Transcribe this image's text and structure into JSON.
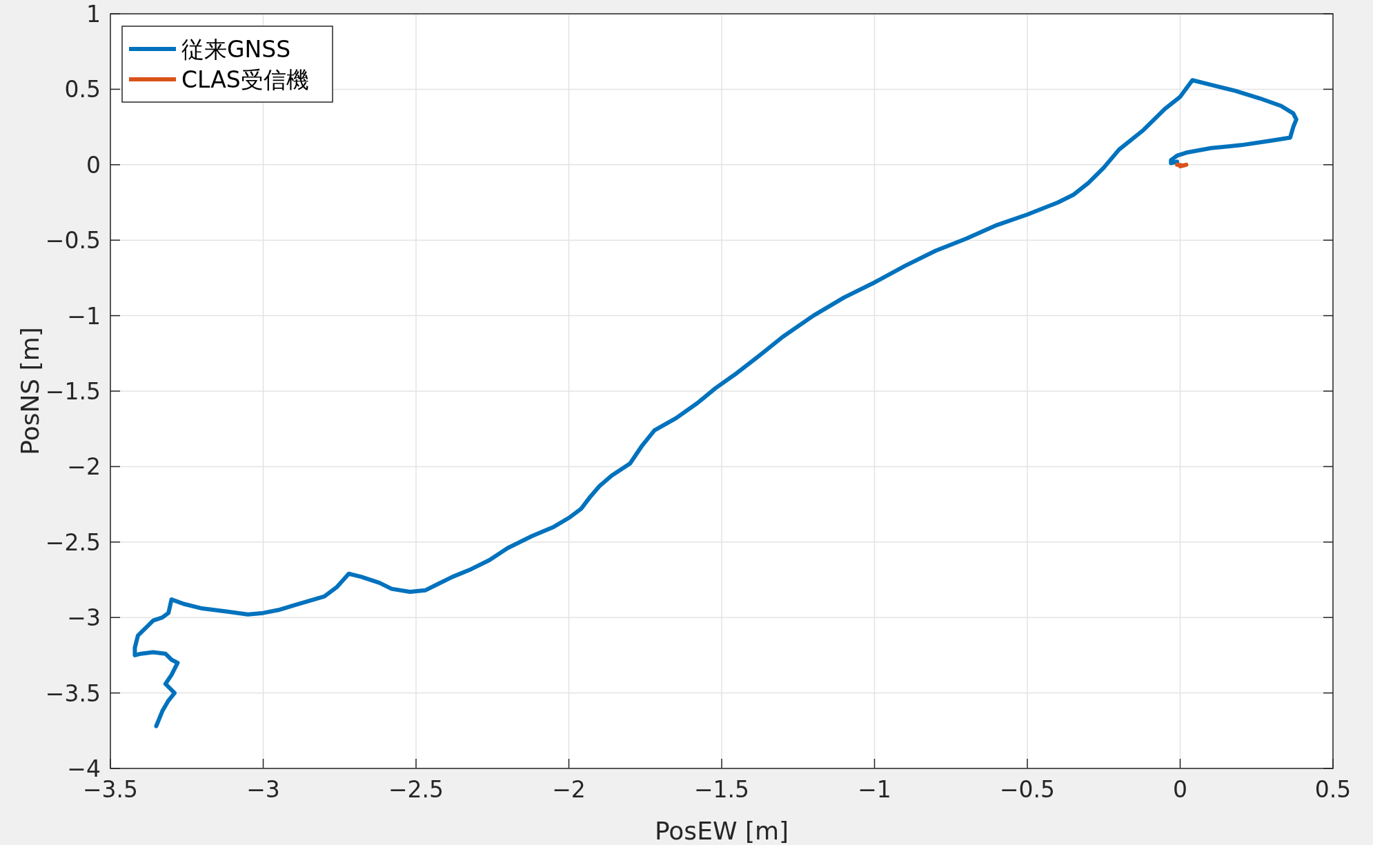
{
  "chart_data": {
    "type": "line",
    "xlabel": "PosEW [m]",
    "ylabel": "PosNS [m]",
    "xlim": [
      -3.5,
      0.5
    ],
    "xticks": [
      {
        "value": -3.5,
        "label": "−3.5"
      },
      {
        "value": -3,
        "label": "−3"
      },
      {
        "value": -2.5,
        "label": "−2.5"
      },
      {
        "value": -2,
        "label": "−2"
      },
      {
        "value": -1.5,
        "label": "−1.5"
      },
      {
        "value": -1,
        "label": "−1"
      },
      {
        "value": -0.5,
        "label": "−0.5"
      },
      0,
      0.5
    ],
    "ylim": [
      -4,
      1
    ],
    "yticks": [
      {
        "value": -4,
        "label": "−4"
      },
      {
        "value": -3.5,
        "label": "−3.5"
      },
      {
        "value": -3,
        "label": "−3"
      },
      {
        "value": -2.5,
        "label": "−2.5"
      },
      {
        "value": -2,
        "label": "−2"
      },
      {
        "value": -1.5,
        "label": "−1.5"
      },
      {
        "value": -1,
        "label": "−1"
      },
      {
        "value": -0.5,
        "label": "−0.5"
      },
      0,
      0.5,
      1
    ],
    "grid": true,
    "legend": "top left",
    "marker": "none",
    "line_style": "solid",
    "series": [
      {
        "name": "従来GNSS",
        "color": "#0072bd",
        "x": [
          -3.35,
          -3.33,
          -3.31,
          -3.29,
          -3.32,
          -3.3,
          -3.28,
          -3.3,
          -3.32,
          -3.36,
          -3.4,
          -3.42,
          -3.42,
          -3.41,
          -3.38,
          -3.36,
          -3.33,
          -3.31,
          -3.3,
          -3.26,
          -3.2,
          -3.12,
          -3.05,
          -3.0,
          -2.95,
          -2.9,
          -2.85,
          -2.8,
          -2.76,
          -2.72,
          -2.68,
          -2.62,
          -2.58,
          -2.52,
          -2.47,
          -2.43,
          -2.38,
          -2.32,
          -2.26,
          -2.2,
          -2.12,
          -2.05,
          -2.0,
          -1.96,
          -1.93,
          -1.9,
          -1.86,
          -1.8,
          -1.76,
          -1.72,
          -1.65,
          -1.58,
          -1.52,
          -1.45,
          -1.38,
          -1.3,
          -1.2,
          -1.1,
          -1.0,
          -0.9,
          -0.8,
          -0.7,
          -0.6,
          -0.5,
          -0.4,
          -0.35,
          -0.3,
          -0.25,
          -0.2,
          -0.12,
          -0.05,
          0.0,
          0.04,
          0.1,
          0.18,
          0.26,
          0.33,
          0.37,
          0.38,
          0.37,
          0.36,
          0.3,
          0.2,
          0.1,
          0.02,
          -0.01,
          -0.03,
          -0.03,
          -0.01
        ],
        "values": [
          -3.72,
          -3.62,
          -3.55,
          -3.5,
          -3.44,
          -3.38,
          -3.3,
          -3.28,
          -3.24,
          -3.23,
          -3.24,
          -3.25,
          -3.2,
          -3.12,
          -3.06,
          -3.02,
          -3.0,
          -2.97,
          -2.88,
          -2.91,
          -2.94,
          -2.96,
          -2.98,
          -2.97,
          -2.95,
          -2.92,
          -2.89,
          -2.86,
          -2.8,
          -2.71,
          -2.73,
          -2.77,
          -2.81,
          -2.83,
          -2.82,
          -2.78,
          -2.73,
          -2.68,
          -2.62,
          -2.54,
          -2.46,
          -2.4,
          -2.34,
          -2.28,
          -2.2,
          -2.13,
          -2.06,
          -1.98,
          -1.86,
          -1.76,
          -1.68,
          -1.58,
          -1.48,
          -1.38,
          -1.27,
          -1.14,
          -1.0,
          -0.88,
          -0.78,
          -0.67,
          -0.57,
          -0.49,
          -0.4,
          -0.33,
          -0.25,
          -0.2,
          -0.12,
          -0.02,
          0.1,
          0.23,
          0.37,
          0.45,
          0.56,
          0.53,
          0.49,
          0.44,
          0.39,
          0.34,
          0.3,
          0.25,
          0.18,
          0.16,
          0.13,
          0.11,
          0.08,
          0.06,
          0.03,
          0.01,
          0.02
        ]
      },
      {
        "name": "CLAS受信機",
        "color": "#d95319",
        "x": [
          -0.01,
          0.01,
          0.02,
          0.0
        ],
        "values": [
          0.0,
          -0.005,
          0.0,
          -0.01
        ]
      }
    ]
  }
}
